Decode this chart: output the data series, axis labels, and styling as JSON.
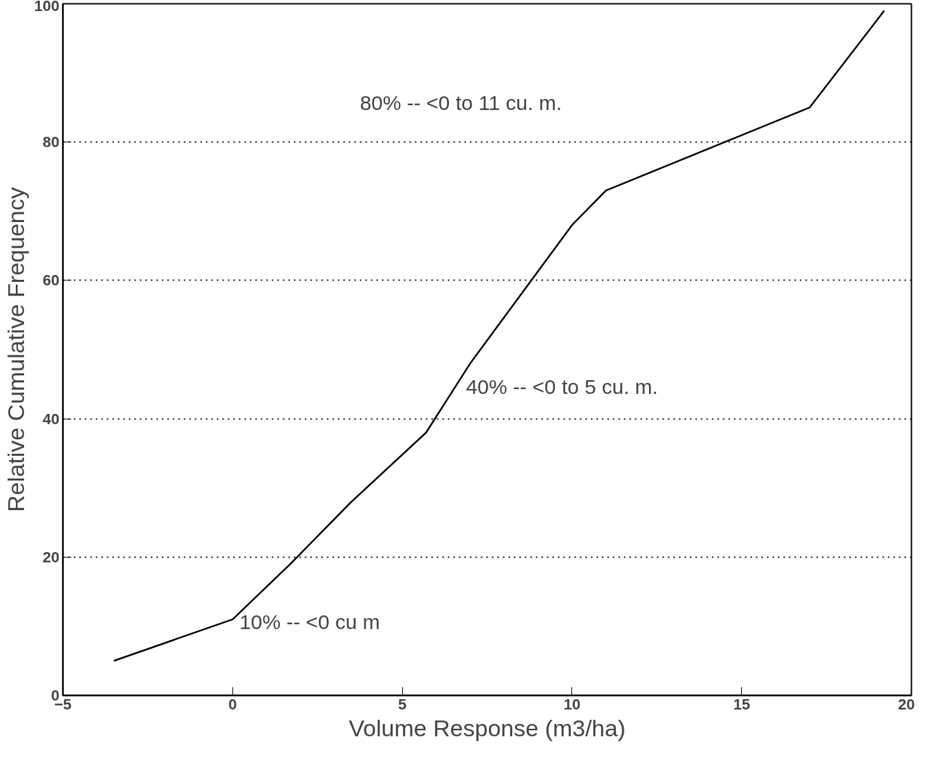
{
  "chart_data": {
    "type": "line",
    "xlabel": "Volume Response (m3/ha)",
    "ylabel": "Relative Cumulative Frequency",
    "x": [
      -3.5,
      0,
      1.7,
      3.5,
      5.7,
      7,
      8.5,
      10,
      11,
      13,
      15,
      17,
      19.2
    ],
    "series": [
      {
        "color": "#000000",
        "values": [
          5,
          11,
          19,
          28,
          38,
          48,
          58,
          68,
          73,
          77,
          81,
          85,
          99
        ]
      }
    ],
    "xlim": [
      -5,
      20
    ],
    "ylim": [
      0,
      100
    ],
    "xticks": [
      -5,
      0,
      5,
      10,
      15,
      20
    ],
    "yticks": [
      0,
      20,
      40,
      60,
      80,
      100
    ],
    "grid": "y",
    "marker": "none",
    "line_style": "solid",
    "annotations": [
      "80% -- <0 to 11 cu. m.",
      "40% -- <0 to 5 cu. m.",
      "10% -- <0 cu m"
    ]
  }
}
